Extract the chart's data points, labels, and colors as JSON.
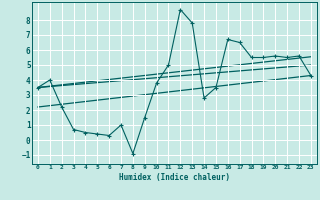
{
  "title": "",
  "xlabel": "Humidex (Indice chaleur)",
  "background_color": "#c8eae5",
  "grid_color": "#ffffff",
  "line_color": "#006060",
  "xlim": [
    -0.5,
    23.5
  ],
  "ylim": [
    -1.6,
    9.2
  ],
  "xticks": [
    0,
    1,
    2,
    3,
    4,
    5,
    6,
    7,
    8,
    9,
    10,
    11,
    12,
    13,
    14,
    15,
    16,
    17,
    18,
    19,
    20,
    21,
    22,
    23
  ],
  "yticks": [
    -1,
    0,
    1,
    2,
    3,
    4,
    5,
    6,
    7,
    8
  ],
  "main_x": [
    0,
    1,
    2,
    3,
    4,
    5,
    6,
    7,
    8,
    9,
    10,
    11,
    12,
    13,
    14,
    15,
    16,
    17,
    18,
    19,
    20,
    21,
    22,
    23
  ],
  "main_y": [
    3.5,
    4.0,
    2.2,
    0.7,
    0.5,
    0.4,
    0.3,
    1.0,
    -0.9,
    1.5,
    3.8,
    5.0,
    8.7,
    7.8,
    2.8,
    3.5,
    6.7,
    6.5,
    5.5,
    5.5,
    5.6,
    5.5,
    5.6,
    4.3
  ],
  "trend1_x": [
    0,
    23
  ],
  "trend1_y": [
    2.2,
    4.3
  ],
  "trend2_x": [
    0,
    23
  ],
  "trend2_y": [
    3.5,
    5.55
  ],
  "trend3_x": [
    0,
    23
  ],
  "trend3_y": [
    3.5,
    5.0
  ]
}
